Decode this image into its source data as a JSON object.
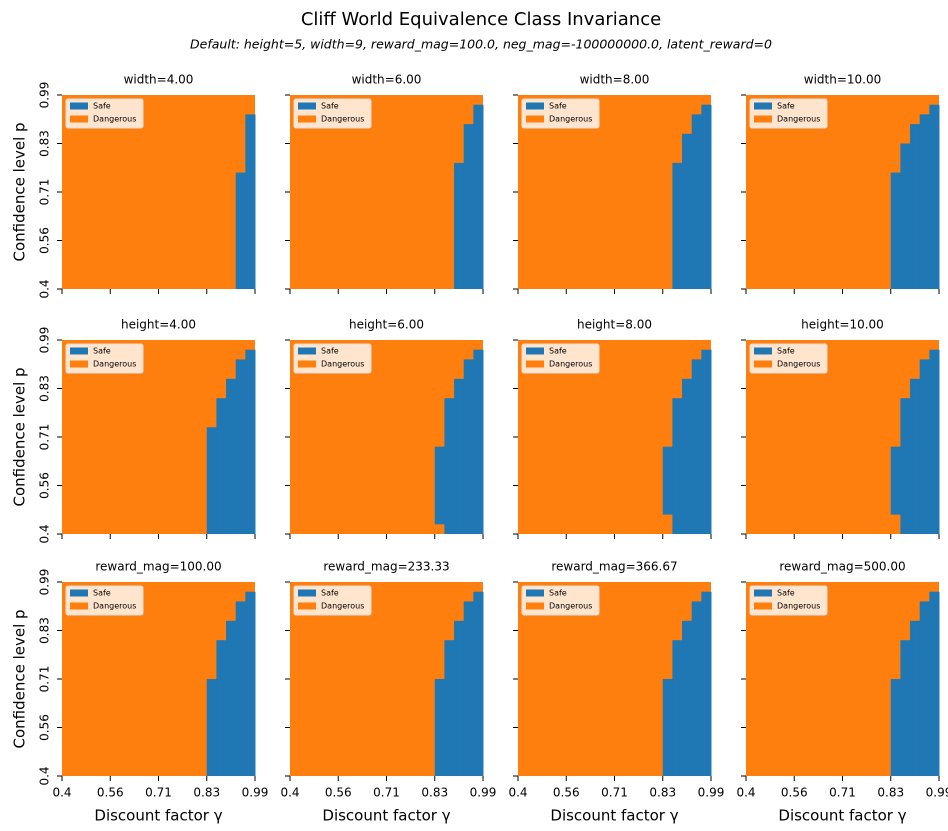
{
  "figure": {
    "title": "Cliff World Equivalence Class Invariance",
    "subtitle": "Default: height=5, width=9, reward_mag=100.0, neg_mag=-100000000.0, latent_reward=0"
  },
  "chart_data": [
    {
      "type": "region",
      "title": "width=4.00",
      "ylabel": "Confidence level p",
      "xlim": [
        0,
        20
      ],
      "ylim": [
        0,
        20
      ],
      "xticks": [
        0,
        5,
        10,
        15,
        20
      ],
      "yticks": [
        {
          "value": 0,
          "label": "0.4"
        },
        {
          "value": 5,
          "label": "0.56"
        },
        {
          "value": 10,
          "label": "0.71"
        },
        {
          "value": 15,
          "label": "0.83"
        },
        {
          "value": 20,
          "label": "0.99"
        }
      ],
      "legend": [
        {
          "name": "Safe",
          "color": "#1f77b4"
        },
        {
          "name": "Dangerous",
          "color": "#ff7f0e"
        }
      ],
      "safe_cells": [
        {
          "gamma": 18,
          "p": [
            0,
            12
          ]
        },
        {
          "gamma": 19,
          "p": [
            0,
            18
          ]
        }
      ]
    },
    {
      "type": "region",
      "title": "width=6.00",
      "xlim": [
        0,
        20
      ],
      "ylim": [
        0,
        20
      ],
      "xticks": [
        0,
        5,
        10,
        15,
        20
      ],
      "yticks": [
        0,
        5,
        10,
        15,
        20
      ],
      "legend": [
        {
          "name": "Safe",
          "color": "#1f77b4"
        },
        {
          "name": "Dangerous",
          "color": "#ff7f0e"
        }
      ],
      "safe_cells": [
        {
          "gamma": 17,
          "p": [
            0,
            13
          ]
        },
        {
          "gamma": 18,
          "p": [
            0,
            17
          ]
        },
        {
          "gamma": 19,
          "p": [
            0,
            19
          ]
        }
      ]
    },
    {
      "type": "region",
      "title": "width=8.00",
      "xlim": [
        0,
        20
      ],
      "ylim": [
        0,
        20
      ],
      "xticks": [
        0,
        5,
        10,
        15,
        20
      ],
      "yticks": [
        0,
        5,
        10,
        15,
        20
      ],
      "legend": [
        {
          "name": "Safe",
          "color": "#1f77b4"
        },
        {
          "name": "Dangerous",
          "color": "#ff7f0e"
        }
      ],
      "safe_cells": [
        {
          "gamma": 16,
          "p": [
            0,
            13
          ]
        },
        {
          "gamma": 17,
          "p": [
            0,
            16
          ]
        },
        {
          "gamma": 18,
          "p": [
            0,
            18
          ]
        },
        {
          "gamma": 19,
          "p": [
            0,
            19
          ]
        }
      ]
    },
    {
      "type": "region",
      "title": "width=10.00",
      "xlim": [
        0,
        20
      ],
      "ylim": [
        0,
        20
      ],
      "xticks": [
        0,
        5,
        10,
        15,
        20
      ],
      "yticks": [
        0,
        5,
        10,
        15,
        20
      ],
      "legend": [
        {
          "name": "Safe",
          "color": "#1f77b4"
        },
        {
          "name": "Dangerous",
          "color": "#ff7f0e"
        }
      ],
      "safe_cells": [
        {
          "gamma": 15,
          "p": [
            0,
            12
          ]
        },
        {
          "gamma": 16,
          "p": [
            0,
            15
          ]
        },
        {
          "gamma": 17,
          "p": [
            0,
            17
          ]
        },
        {
          "gamma": 18,
          "p": [
            0,
            18
          ]
        },
        {
          "gamma": 19,
          "p": [
            0,
            19
          ]
        }
      ]
    },
    {
      "type": "region",
      "title": "height=4.00",
      "ylabel": "Confidence level p",
      "xlim": [
        0,
        20
      ],
      "ylim": [
        0,
        20
      ],
      "xticks": [
        0,
        5,
        10,
        15,
        20
      ],
      "yticks": [
        {
          "value": 0,
          "label": "0.4"
        },
        {
          "value": 5,
          "label": "0.56"
        },
        {
          "value": 10,
          "label": "0.71"
        },
        {
          "value": 15,
          "label": "0.83"
        },
        {
          "value": 20,
          "label": "0.99"
        }
      ],
      "legend": [
        {
          "name": "Safe",
          "color": "#1f77b4"
        },
        {
          "name": "Dangerous",
          "color": "#ff7f0e"
        }
      ],
      "safe_cells": [
        {
          "gamma": 15,
          "p": [
            0,
            11
          ]
        },
        {
          "gamma": 16,
          "p": [
            0,
            14
          ]
        },
        {
          "gamma": 17,
          "p": [
            0,
            16
          ]
        },
        {
          "gamma": 18,
          "p": [
            0,
            18
          ]
        },
        {
          "gamma": 19,
          "p": [
            0,
            19
          ]
        }
      ]
    },
    {
      "type": "region",
      "title": "height=6.00",
      "xlim": [
        0,
        20
      ],
      "ylim": [
        0,
        20
      ],
      "xticks": [
        0,
        5,
        10,
        15,
        20
      ],
      "yticks": [
        0,
        5,
        10,
        15,
        20
      ],
      "legend": [
        {
          "name": "Safe",
          "color": "#1f77b4"
        },
        {
          "name": "Dangerous",
          "color": "#ff7f0e"
        }
      ],
      "safe_cells": [
        {
          "gamma": 15,
          "p": [
            1,
            9
          ]
        },
        {
          "gamma": 16,
          "p": [
            0,
            14
          ]
        },
        {
          "gamma": 17,
          "p": [
            0,
            16
          ]
        },
        {
          "gamma": 18,
          "p": [
            0,
            18
          ]
        },
        {
          "gamma": 19,
          "p": [
            0,
            19
          ]
        }
      ]
    },
    {
      "type": "region",
      "title": "height=8.00",
      "xlim": [
        0,
        20
      ],
      "ylim": [
        0,
        20
      ],
      "xticks": [
        0,
        5,
        10,
        15,
        20
      ],
      "yticks": [
        0,
        5,
        10,
        15,
        20
      ],
      "legend": [
        {
          "name": "Safe",
          "color": "#1f77b4"
        },
        {
          "name": "Dangerous",
          "color": "#ff7f0e"
        }
      ],
      "safe_cells": [
        {
          "gamma": 15,
          "p": [
            2,
            9
          ]
        },
        {
          "gamma": 16,
          "p": [
            0,
            14
          ]
        },
        {
          "gamma": 17,
          "p": [
            0,
            16
          ]
        },
        {
          "gamma": 18,
          "p": [
            0,
            18
          ]
        },
        {
          "gamma": 19,
          "p": [
            0,
            19
          ]
        }
      ]
    },
    {
      "type": "region",
      "title": "height=10.00",
      "xlim": [
        0,
        20
      ],
      "ylim": [
        0,
        20
      ],
      "xticks": [
        0,
        5,
        10,
        15,
        20
      ],
      "yticks": [
        0,
        5,
        10,
        15,
        20
      ],
      "legend": [
        {
          "name": "Safe",
          "color": "#1f77b4"
        },
        {
          "name": "Dangerous",
          "color": "#ff7f0e"
        }
      ],
      "safe_cells": [
        {
          "gamma": 15,
          "p": [
            2,
            9
          ]
        },
        {
          "gamma": 16,
          "p": [
            0,
            14
          ]
        },
        {
          "gamma": 17,
          "p": [
            0,
            16
          ]
        },
        {
          "gamma": 18,
          "p": [
            0,
            18
          ]
        },
        {
          "gamma": 19,
          "p": [
            0,
            19
          ]
        }
      ]
    },
    {
      "type": "region",
      "title": "reward_mag=100.00",
      "xlabel": "Discount factor γ",
      "ylabel": "Confidence level p",
      "xlim": [
        0,
        20
      ],
      "ylim": [
        0,
        20
      ],
      "xticks": [
        {
          "value": 0,
          "label": "0.4"
        },
        {
          "value": 5,
          "label": "0.56"
        },
        {
          "value": 10,
          "label": "0.71"
        },
        {
          "value": 15,
          "label": "0.83"
        },
        {
          "value": 20,
          "label": "0.99"
        }
      ],
      "yticks": [
        {
          "value": 0,
          "label": "0.4"
        },
        {
          "value": 5,
          "label": "0.56"
        },
        {
          "value": 10,
          "label": "0.71"
        },
        {
          "value": 15,
          "label": "0.83"
        },
        {
          "value": 20,
          "label": "0.99"
        }
      ],
      "legend": [
        {
          "name": "Safe",
          "color": "#1f77b4"
        },
        {
          "name": "Dangerous",
          "color": "#ff7f0e"
        }
      ],
      "safe_cells": [
        {
          "gamma": 15,
          "p": [
            0,
            10
          ]
        },
        {
          "gamma": 16,
          "p": [
            0,
            14
          ]
        },
        {
          "gamma": 17,
          "p": [
            0,
            16
          ]
        },
        {
          "gamma": 18,
          "p": [
            0,
            18
          ]
        },
        {
          "gamma": 19,
          "p": [
            0,
            19
          ]
        }
      ]
    },
    {
      "type": "region",
      "title": "reward_mag=233.33",
      "xlabel": "Discount factor γ",
      "xlim": [
        0,
        20
      ],
      "ylim": [
        0,
        20
      ],
      "xticks": [
        {
          "value": 0,
          "label": "0.4"
        },
        {
          "value": 5,
          "label": "0.56"
        },
        {
          "value": 10,
          "label": "0.71"
        },
        {
          "value": 15,
          "label": "0.83"
        },
        {
          "value": 20,
          "label": "0.99"
        }
      ],
      "yticks": [
        0,
        5,
        10,
        15,
        20
      ],
      "legend": [
        {
          "name": "Safe",
          "color": "#1f77b4"
        },
        {
          "name": "Dangerous",
          "color": "#ff7f0e"
        }
      ],
      "safe_cells": [
        {
          "gamma": 15,
          "p": [
            0,
            10
          ]
        },
        {
          "gamma": 16,
          "p": [
            0,
            14
          ]
        },
        {
          "gamma": 17,
          "p": [
            0,
            16
          ]
        },
        {
          "gamma": 18,
          "p": [
            0,
            18
          ]
        },
        {
          "gamma": 19,
          "p": [
            0,
            19
          ]
        }
      ]
    },
    {
      "type": "region",
      "title": "reward_mag=366.67",
      "xlabel": "Discount factor γ",
      "xlim": [
        0,
        20
      ],
      "ylim": [
        0,
        20
      ],
      "xticks": [
        {
          "value": 0,
          "label": "0.4"
        },
        {
          "value": 5,
          "label": "0.56"
        },
        {
          "value": 10,
          "label": "0.71"
        },
        {
          "value": 15,
          "label": "0.83"
        },
        {
          "value": 20,
          "label": "0.99"
        }
      ],
      "yticks": [
        0,
        5,
        10,
        15,
        20
      ],
      "legend": [
        {
          "name": "Safe",
          "color": "#1f77b4"
        },
        {
          "name": "Dangerous",
          "color": "#ff7f0e"
        }
      ],
      "safe_cells": [
        {
          "gamma": 15,
          "p": [
            0,
            10
          ]
        },
        {
          "gamma": 16,
          "p": [
            0,
            14
          ]
        },
        {
          "gamma": 17,
          "p": [
            0,
            16
          ]
        },
        {
          "gamma": 18,
          "p": [
            0,
            18
          ]
        },
        {
          "gamma": 19,
          "p": [
            0,
            19
          ]
        }
      ]
    },
    {
      "type": "region",
      "title": "reward_mag=500.00",
      "xlabel": "Discount factor γ",
      "xlim": [
        0,
        20
      ],
      "ylim": [
        0,
        20
      ],
      "xticks": [
        {
          "value": 0,
          "label": "0.4"
        },
        {
          "value": 5,
          "label": "0.56"
        },
        {
          "value": 10,
          "label": "0.71"
        },
        {
          "value": 15,
          "label": "0.83"
        },
        {
          "value": 20,
          "label": "0.99"
        }
      ],
      "yticks": [
        0,
        5,
        10,
        15,
        20
      ],
      "legend": [
        {
          "name": "Safe",
          "color": "#1f77b4"
        },
        {
          "name": "Dangerous",
          "color": "#ff7f0e"
        }
      ],
      "safe_cells": [
        {
          "gamma": 15,
          "p": [
            0,
            10
          ]
        },
        {
          "gamma": 16,
          "p": [
            0,
            14
          ]
        },
        {
          "gamma": 17,
          "p": [
            0,
            16
          ]
        },
        {
          "gamma": 18,
          "p": [
            0,
            18
          ]
        },
        {
          "gamma": 19,
          "p": [
            0,
            19
          ]
        }
      ]
    }
  ]
}
